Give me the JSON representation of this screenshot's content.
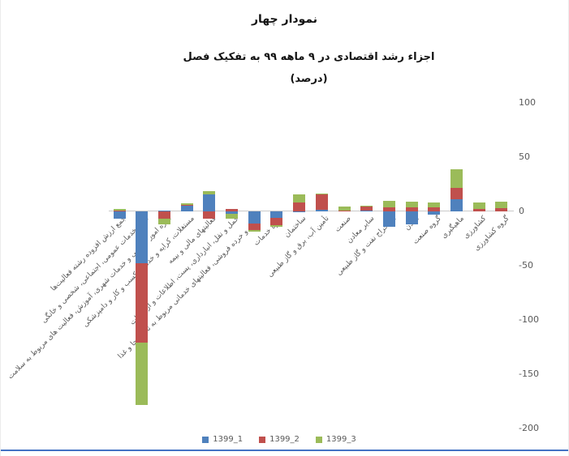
{
  "window": {
    "bottom_border_color": "#4472C4"
  },
  "chart": {
    "title": "نمودار چهار",
    "subtitle": "اجزاء رشد اقتصادی در ۹ ماهه ۹۹ به تفکیک فصل",
    "subtitle2": "(درصد)"
  },
  "chart_data": {
    "type": "bar",
    "stacked": true,
    "title": "نمودار چهار",
    "subtitle": "اجزاء رشد اقتصادی در ۹ ماهه ۹۹ به تفکیک فصل (درصد)",
    "ylabel": "",
    "xlabel": "",
    "ylim": [
      -200,
      100
    ],
    "yticks": [
      100,
      50,
      0,
      -50,
      -100,
      -150,
      -200
    ],
    "grid": false,
    "legend_position": "bottom",
    "categories": [
      "جمع ارزش افزوده رشته فعالیت‌ها",
      "سایر خدمات عمومی، اجتماعی، شخصی و خانگی",
      "اداره امور عمومی و خدمات شهری، آموزش، فعالیت های مربوط به سلامت",
      "مستغلات، کرایه و خدمات کسب و کار و دامپزشکی",
      "فعالیتهای مالی و بیمه",
      "حمل و نقل، انبارداری، پست، اطلاعات و ارتباطات",
      "عمده و خرده فروشی، فعالیتهای خدماتی مربوط به تأمین جا و غذا",
      "گروه خدمات",
      "ساختمان",
      "تأمین آب، برق و گاز طبیعی",
      "صنعت",
      "سایر معادن",
      "استخراج نفت و گاز طبیعی",
      "معدن",
      "گروه صنعت",
      "ماهیگیری",
      "کشاورزی",
      "گروه کشاورزی"
    ],
    "series": [
      {
        "name": "1399_1",
        "color": "#4F81BD",
        "values": [
          -7,
          -48,
          1,
          5,
          16,
          -2.5,
          -11,
          -6,
          -1,
          1.5,
          0.5,
          0.5,
          -14,
          -12,
          -3,
          11,
          0,
          0
        ]
      },
      {
        "name": "1399_2",
        "color": "#C0504D",
        "values": [
          1,
          -73,
          -7,
          1,
          -7,
          2,
          -6,
          -7,
          8,
          14,
          0.5,
          4,
          4,
          4,
          4,
          11,
          2,
          3
        ]
      },
      {
        "name": "1399_3",
        "color": "#9BBB59",
        "values": [
          1.5,
          -57,
          -5,
          1.5,
          3,
          -4,
          -2,
          -1.5,
          8,
          1,
          3.5,
          1,
          6,
          5,
          4.5,
          17,
          6,
          6
        ]
      }
    ]
  }
}
